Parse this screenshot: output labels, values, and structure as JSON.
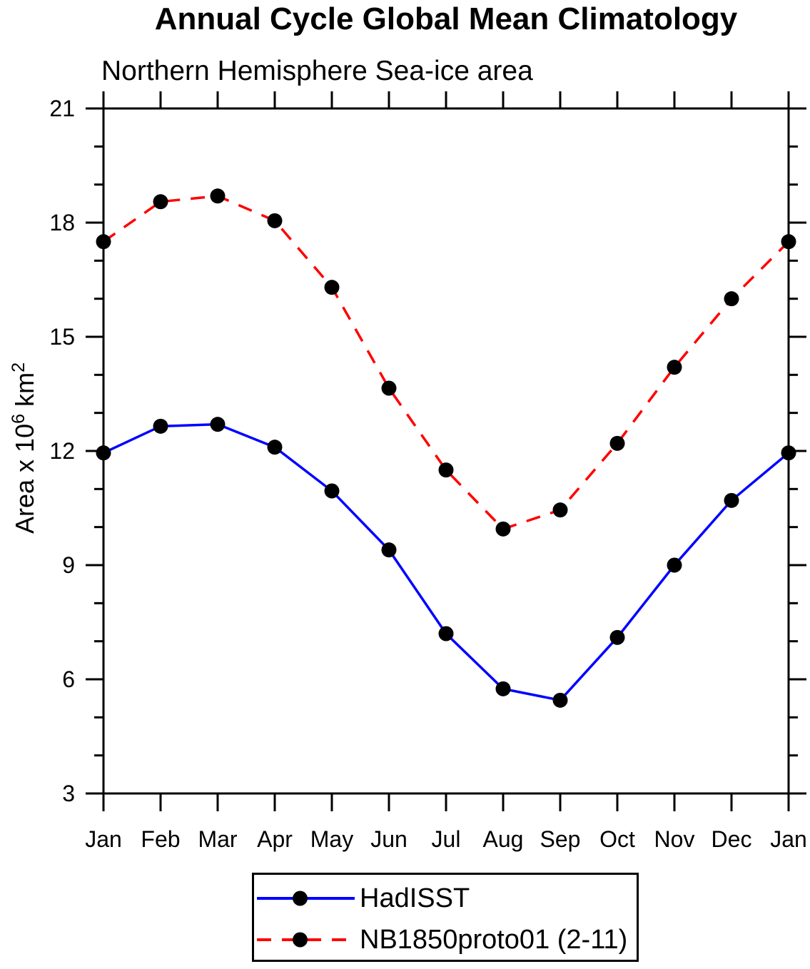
{
  "title": "Annual Cycle Global Mean Climatology",
  "subtitle": "Northern Hemisphere Sea-ice area",
  "ylabel": "Area x 10⁶ km²",
  "ylabel_parts": {
    "base1": "Area x 10",
    "sup1": "6",
    "base2": " km",
    "sup2": "2"
  },
  "colors": {
    "axis": "#000000",
    "hadisst_line": "#0000ff",
    "model_line": "#ff0000",
    "marker": "#000000"
  },
  "chart_data": {
    "type": "line",
    "categories": [
      "Jan",
      "Feb",
      "Mar",
      "Apr",
      "May",
      "Jun",
      "Jul",
      "Aug",
      "Sep",
      "Oct",
      "Nov",
      "Dec",
      "Jan"
    ],
    "series": [
      {
        "name": "HadISST",
        "color": "#0000ff",
        "line_style": "solid",
        "marker": "circle",
        "marker_color": "#000000",
        "values": [
          11.95,
          12.65,
          12.7,
          12.1,
          10.95,
          9.4,
          7.2,
          5.75,
          5.45,
          7.1,
          9.0,
          10.7,
          11.95
        ]
      },
      {
        "name": "NB1850proto01 (2-11)",
        "color": "#ff0000",
        "line_style": "dashed",
        "marker": "circle",
        "marker_color": "#000000",
        "values": [
          17.5,
          18.55,
          18.7,
          18.05,
          16.3,
          13.65,
          11.5,
          9.95,
          10.45,
          12.2,
          14.2,
          16.0,
          17.5
        ]
      }
    ],
    "title": "Annual Cycle Global Mean Climatology",
    "subtitle": "Northern Hemisphere Sea-ice area",
    "xlabel": "",
    "ylabel": "Area x 10⁶ km²",
    "ylim": [
      3,
      21
    ],
    "yticks": [
      3,
      6,
      9,
      12,
      15,
      18,
      21
    ],
    "y_minor_step": 1,
    "grid": false,
    "legend_position": "bottom-center-boxed"
  }
}
